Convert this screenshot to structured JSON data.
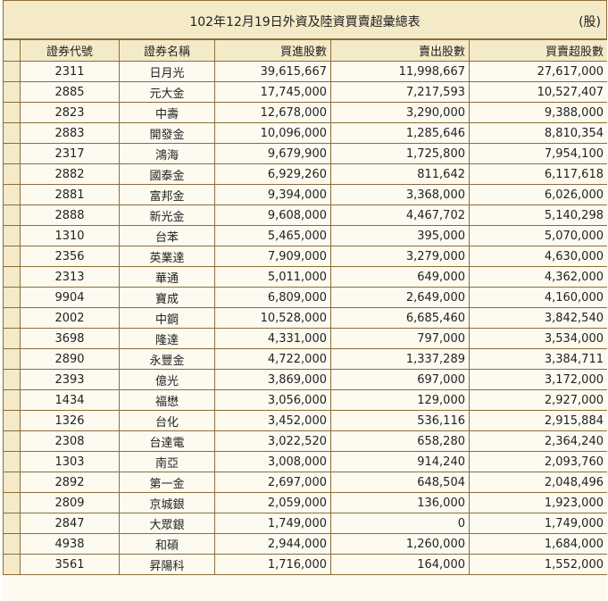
{
  "title": "102年12月19日外資及陸資買賣超彙總表",
  "unit": "(股)",
  "headers": [
    "證券代號",
    "證券名稱",
    "買進股數",
    "賣出股數",
    "買賣超股數"
  ],
  "rows": [
    [
      "2311",
      "日月光",
      "39,615,667",
      "11,998,667",
      "27,617,000"
    ],
    [
      "2885",
      "元大金",
      "17,745,000",
      "7,217,593",
      "10,527,407"
    ],
    [
      "2823",
      "中壽",
      "12,678,000",
      "3,290,000",
      "9,388,000"
    ],
    [
      "2883",
      "開發金",
      "10,096,000",
      "1,285,646",
      "8,810,354"
    ],
    [
      "2317",
      "鴻海",
      "9,679,900",
      "1,725,800",
      "7,954,100"
    ],
    [
      "2882",
      "國泰金",
      "6,929,260",
      "811,642",
      "6,117,618"
    ],
    [
      "2881",
      "富邦金",
      "9,394,000",
      "3,368,000",
      "6,026,000"
    ],
    [
      "2888",
      "新光金",
      "9,608,000",
      "4,467,702",
      "5,140,298"
    ],
    [
      "1310",
      "台苯",
      "5,465,000",
      "395,000",
      "5,070,000"
    ],
    [
      "2356",
      "英業達",
      "7,909,000",
      "3,279,000",
      "4,630,000"
    ],
    [
      "2313",
      "華通",
      "5,011,000",
      "649,000",
      "4,362,000"
    ],
    [
      "9904",
      "寶成",
      "6,809,000",
      "2,649,000",
      "4,160,000"
    ],
    [
      "2002",
      "中鋼",
      "10,528,000",
      "6,685,460",
      "3,842,540"
    ],
    [
      "3698",
      "隆達",
      "4,331,000",
      "797,000",
      "3,534,000"
    ],
    [
      "2890",
      "永豐金",
      "4,722,000",
      "1,337,289",
      "3,384,711"
    ],
    [
      "2393",
      "億光",
      "3,869,000",
      "697,000",
      "3,172,000"
    ],
    [
      "1434",
      "福懋",
      "3,056,000",
      "129,000",
      "2,927,000"
    ],
    [
      "1326",
      "台化",
      "3,452,000",
      "536,116",
      "2,915,884"
    ],
    [
      "2308",
      "台達電",
      "3,022,520",
      "658,280",
      "2,364,240"
    ],
    [
      "1303",
      "南亞",
      "3,008,000",
      "914,240",
      "2,093,760"
    ],
    [
      "2892",
      "第一金",
      "2,697,000",
      "648,504",
      "2,048,496"
    ],
    [
      "2809",
      "京城銀",
      "2,059,000",
      "136,000",
      "1,923,000"
    ],
    [
      "2847",
      "大眾銀",
      "1,749,000",
      "0",
      "1,749,000"
    ],
    [
      "4938",
      "和碩",
      "2,944,000",
      "1,260,000",
      "1,684,000"
    ],
    [
      "3561",
      "昇陽科",
      "1,716,000",
      "164,000",
      "1,552,000"
    ]
  ]
}
